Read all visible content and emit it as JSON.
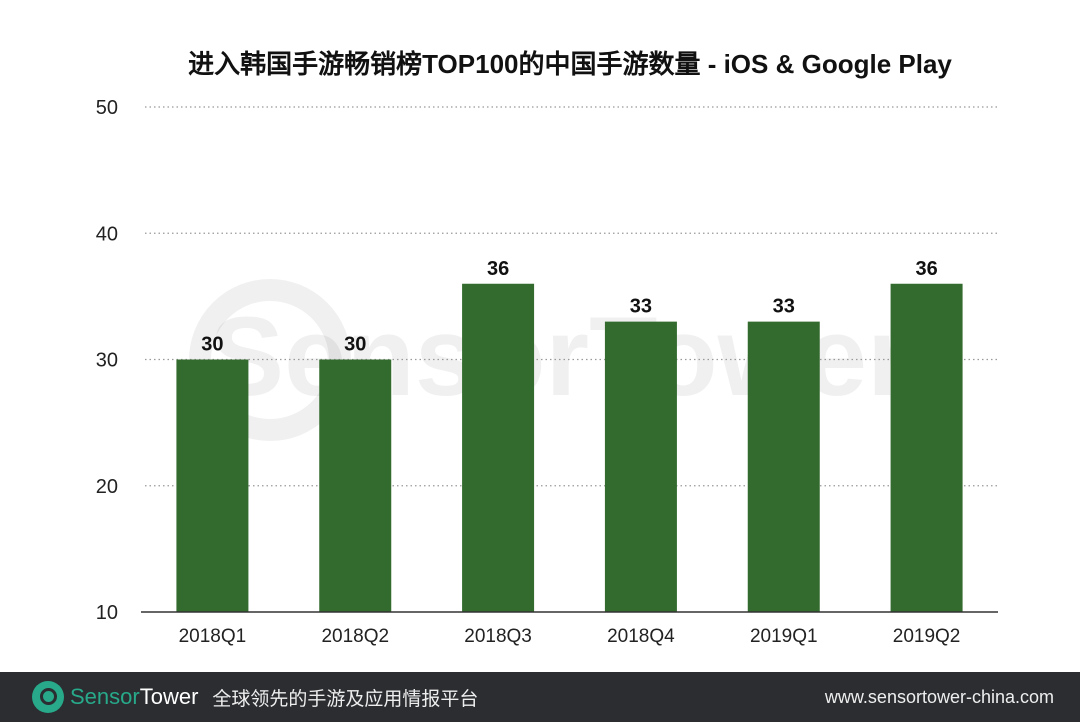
{
  "chart_data": {
    "type": "bar",
    "title": "进入韩国手游畅销榜TOP100的中国手游数量 - iOS & Google Play",
    "categories": [
      "2018Q1",
      "2018Q2",
      "2018Q3",
      "2018Q4",
      "2019Q1",
      "2019Q2"
    ],
    "values": [
      30,
      30,
      36,
      33,
      33,
      36
    ],
    "ylim": [
      10,
      50
    ],
    "yticks": [
      10,
      20,
      30,
      40,
      50
    ],
    "xlabel": "",
    "ylabel": "",
    "grid": "horizontal dotted",
    "bar_color": "#336a2e",
    "data_labels": true
  },
  "watermark": "SensorTower",
  "footer": {
    "brand_part1": "Sensor",
    "brand_part2": "Tower",
    "tagline": "全球领先的手游及应用情报平台",
    "website": "www.sensortower-china.com",
    "brand_color": "#27a98a"
  }
}
